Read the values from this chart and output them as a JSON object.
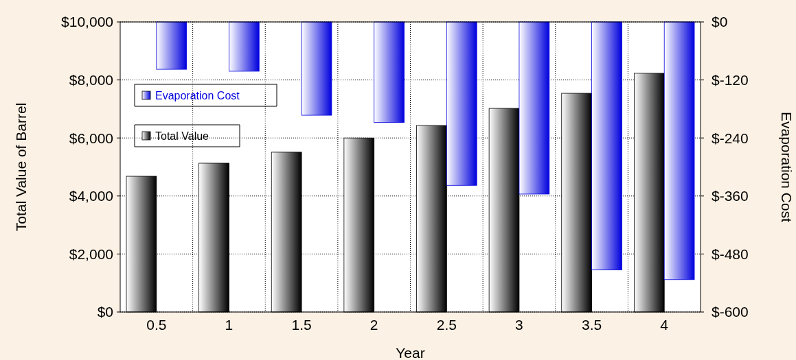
{
  "chart_data": {
    "type": "bar",
    "xlabel": "Year",
    "ylabel": "Total Value of Barrel",
    "y2label": "Evaporation Cost",
    "categories": [
      "0.5",
      "1",
      "1.5",
      "2",
      "2.5",
      "3",
      "3.5",
      "4"
    ],
    "series": [
      {
        "name": "Total Value",
        "color": "#000000",
        "values": [
          4680,
          5130,
          5510,
          6000,
          6430,
          7020,
          7540,
          8230
        ]
      },
      {
        "name": "Evaporation Cost",
        "color": "#0000dd",
        "axis": "y2",
        "values": [
          -98,
          -102,
          -193,
          -208,
          -338,
          -356,
          -513,
          -533
        ]
      }
    ],
    "ylim": [
      0,
      10000
    ],
    "yticks": [
      {
        "value": 0,
        "label": "$0"
      },
      {
        "value": 2000,
        "label": "$2,000"
      },
      {
        "value": 4000,
        "label": "$4,000"
      },
      {
        "value": 6000,
        "label": "$6,000"
      },
      {
        "value": 8000,
        "label": "$8,000"
      },
      {
        "value": 10000,
        "label": "$10,000"
      }
    ],
    "y2lim": [
      -600,
      0
    ],
    "y2ticks": [
      {
        "value": -600,
        "label": "$-600"
      },
      {
        "value": -480,
        "label": "$-480"
      },
      {
        "value": -360,
        "label": "$-360"
      },
      {
        "value": -240,
        "label": "$-240"
      },
      {
        "value": -120,
        "label": "$-120"
      },
      {
        "value": 0,
        "label": "$0"
      }
    ],
    "grid": true,
    "legend": "top left"
  }
}
